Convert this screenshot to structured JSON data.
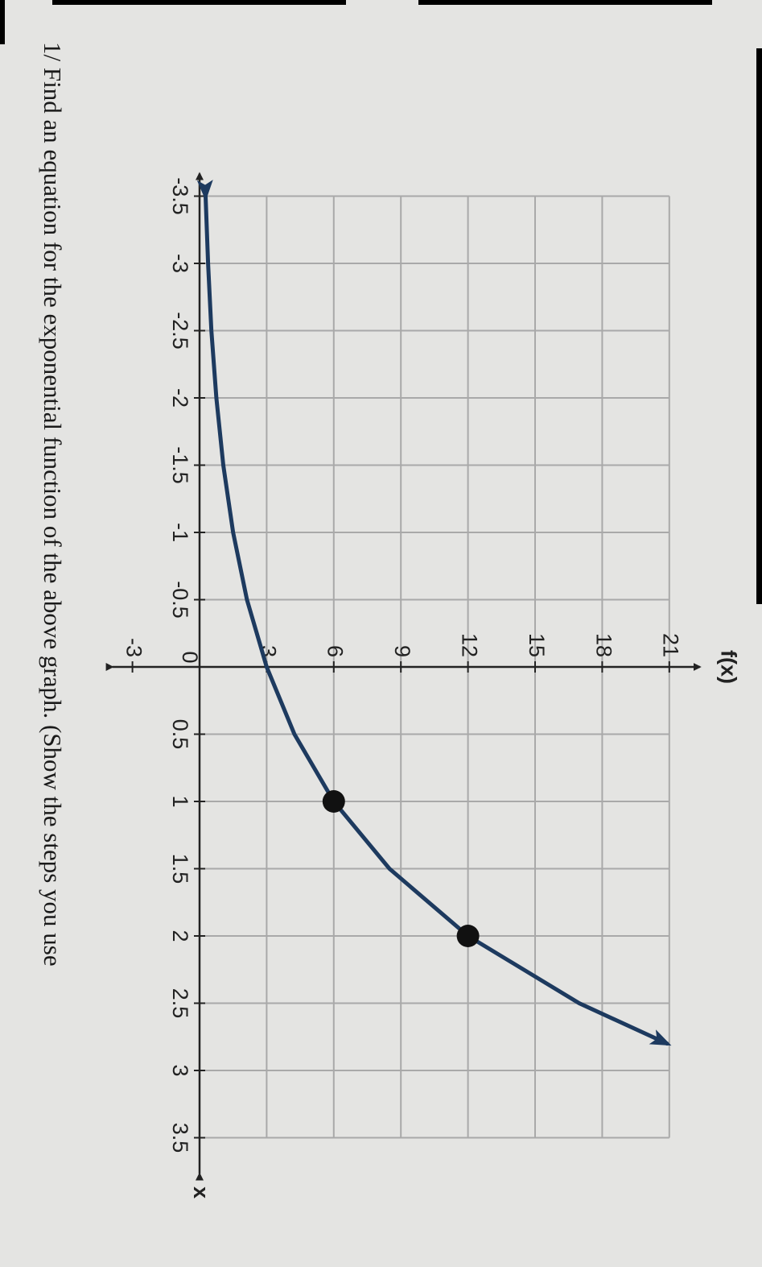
{
  "chart_data": {
    "type": "line",
    "title": "f(x)",
    "x_label": "x",
    "x": [
      -3.5,
      -3,
      -2.5,
      -2,
      -1.5,
      -1,
      -0.5,
      0,
      0.5,
      1,
      1.5,
      2,
      2.5,
      2.8
    ],
    "values": [
      0.27,
      0.38,
      0.53,
      0.75,
      1.06,
      1.5,
      2.12,
      3,
      4.24,
      6,
      8.49,
      12,
      16.97,
      20.9
    ],
    "color": "#1d3a5f",
    "points": {
      "x": [
        1,
        2
      ],
      "values": [
        6,
        12
      ],
      "color": "#111111"
    },
    "xlim": [
      -3.5,
      3.5
    ],
    "xticks": [
      -3.5,
      -3,
      -2.5,
      -2,
      -1.5,
      -1,
      -0.5,
      0,
      0.5,
      1,
      1.5,
      2,
      2.5,
      3,
      3.5
    ],
    "ylim": [
      -3,
      21
    ],
    "yticks": [
      -3,
      3,
      6,
      9,
      12,
      15,
      18,
      21
    ],
    "grid": true
  },
  "question": "1/ Find an equation for the exponential function of the above graph. (Show the steps you use"
}
